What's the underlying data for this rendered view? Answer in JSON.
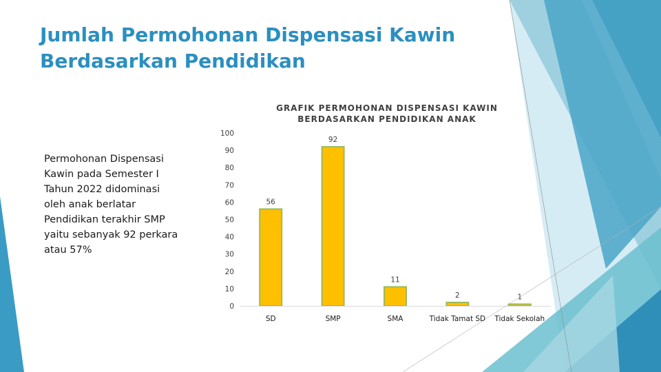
{
  "slide": {
    "title_line1": "Jumlah Permohonan Dispensasi Kawin",
    "title_line2": "Berdasarkan Pendidikan",
    "body_text": "Permohonan Dispensasi\nKawin pada Semester I\nTahun 2022 didominasi\noleh anak berlatar\nPendidikan terakhir SMP\nyaitu sebanyak 92 perkara\natau 57%"
  },
  "colors": {
    "title": "#2b8fc0",
    "bar_fill": "#ffc000",
    "bar_edge": "#9bbb59",
    "deco_dark": "#2f8fb8",
    "deco_light": "#bde1ee"
  },
  "chart_data": {
    "type": "bar",
    "title_line1": "GRAFIK PERMOHONAN DISPENSASI KAWIN",
    "title_line2": "BERDASARKAN PENDIDIKAN ANAK",
    "categories": [
      "SD",
      "SMP",
      "SMA",
      "Tidak Tamat SD",
      "Tidak Sekolah"
    ],
    "values": [
      56,
      92,
      11,
      2,
      1
    ],
    "ylim": [
      0,
      100
    ],
    "yticks": [
      0,
      10,
      20,
      30,
      40,
      50,
      60,
      70,
      80,
      90,
      100
    ],
    "data_labels": true,
    "grid": false,
    "legend": "none"
  }
}
